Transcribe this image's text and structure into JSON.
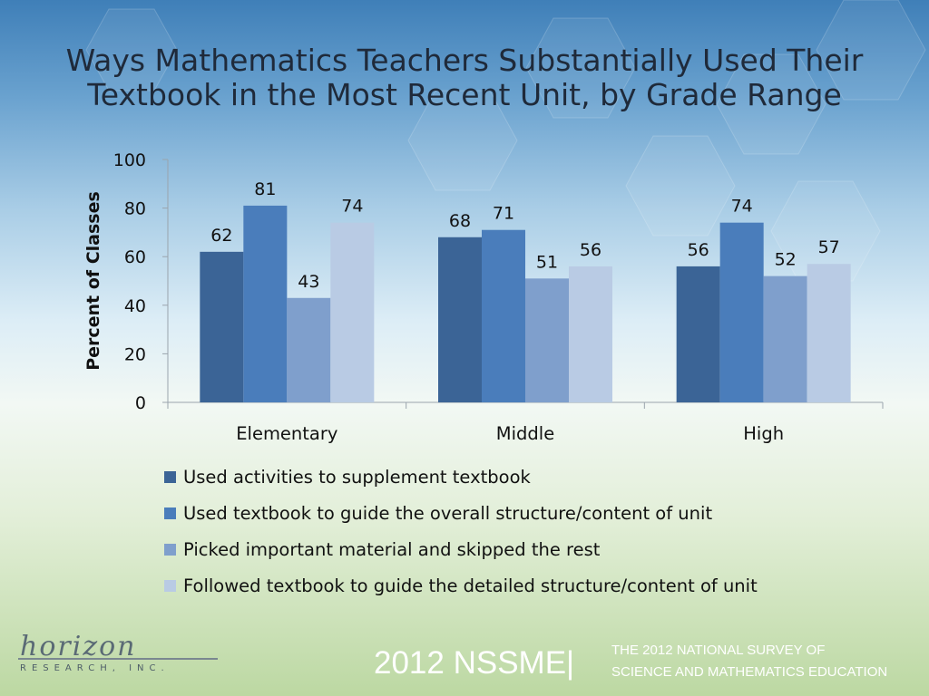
{
  "title_lines": [
    "Ways Mathematics Teachers Substantially Used Their",
    "Textbook in the Most Recent Unit, by Grade Range"
  ],
  "colors": {
    "series": [
      "#3b6496",
      "#4a7dbb",
      "#7f9fcc",
      "#b9cbe4"
    ],
    "axis": "#9aa4ad"
  },
  "chart_data": {
    "type": "bar",
    "categories": [
      "Elementary",
      "Middle",
      "High"
    ],
    "series": [
      {
        "name": "Used activities to supplement textbook",
        "values": [
          62,
          68,
          56
        ]
      },
      {
        "name": "Used textbook to guide the overall structure/content of unit",
        "values": [
          81,
          71,
          74
        ]
      },
      {
        "name": "Picked important material and skipped the rest",
        "values": [
          43,
          51,
          52
        ]
      },
      {
        "name": "Followed textbook to guide the detailed structure/content of unit",
        "values": [
          74,
          56,
          57
        ]
      }
    ],
    "ylabel": "Percent of Classes",
    "xlabel": "",
    "ylim": [
      0,
      100
    ],
    "yticks": [
      0,
      20,
      40,
      60,
      80,
      100
    ],
    "grid": false,
    "legend_position": "bottom"
  },
  "footer": {
    "logo_main": "horizon",
    "logo_sub": "RESEARCH, INC.",
    "nssme": "2012 NSSME|",
    "survey_line1": "THE 2012 NATIONAL SURVEY OF",
    "survey_line2": "SCIENCE AND MATHEMATICS EDUCATION"
  }
}
